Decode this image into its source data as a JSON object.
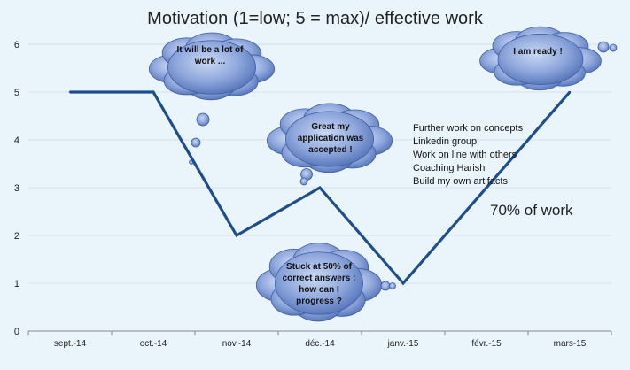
{
  "chart_data": {
    "type": "line",
    "title": "Motivation (1=low; 5 = max)/ effective work",
    "categories": [
      "sept.-14",
      "oct.-14",
      "nov.-14",
      "déc.-14",
      "janv.-15",
      "févr.-15",
      "mars-15"
    ],
    "y_ticks": [
      "0",
      "1",
      "2",
      "3",
      "4",
      "5",
      "6"
    ],
    "ylim": [
      0,
      6
    ],
    "grid": true,
    "series": [
      {
        "x": [
          0,
          1,
          2,
          3,
          4,
          6
        ],
        "values": [
          5,
          5,
          2,
          3,
          1,
          5
        ],
        "color": "#1f4e8c"
      }
    ],
    "annotations": {
      "cloud1": "It will be a lot of work  ...",
      "cloud2": "Great my application was accepted !",
      "cloud3": "Stuck at 50% of correct answers : how can I progress ?",
      "cloud4": "I am ready !",
      "notes": [
        "Further work  on concepts",
        "Linkedin group",
        "Work on line with others",
        "Coaching  Harish",
        "Build my own artifacts"
      ],
      "work_pct": "70% of work"
    }
  },
  "colors": {
    "line": "#1f4e8c",
    "cloud_fill": "#8ea6d9",
    "grid": "#d8dfe6",
    "axis": "#888888"
  }
}
